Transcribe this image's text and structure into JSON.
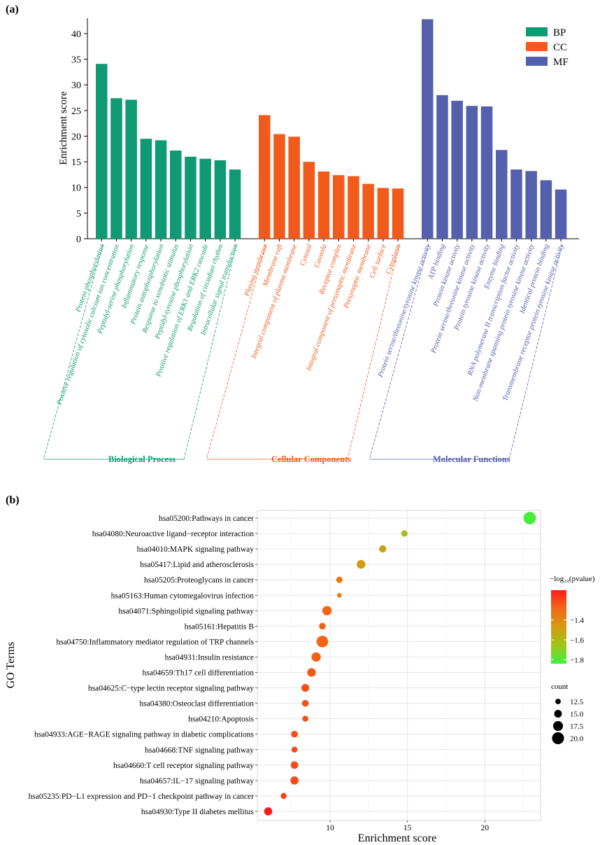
{
  "colors": {
    "bp": "#0f9a73",
    "cc": "#f05b1b",
    "mf": "#5460ac",
    "axis": "#000000",
    "grid": "#e6e6e6",
    "panel_bg": "#ffffff"
  },
  "chart_data": [
    {
      "panel_label": "(a)",
      "type": "bar",
      "ylabel": "Enrichment score",
      "ylim": [
        0,
        43
      ],
      "yticks": [
        0,
        5,
        10,
        15,
        20,
        25,
        30,
        35,
        40
      ],
      "legend": {
        "position": "top-right",
        "entries": [
          "BP",
          "CC",
          "MF"
        ]
      },
      "groups": [
        {
          "key": "BP",
          "name": "Biological Process",
          "color_key": "bp",
          "categories": [
            "Protein phosphorylation",
            "Positive regulation of cytosolic calcium ion concentration",
            "Peptidyl-serine phosphorylation",
            "Inflammatory response",
            "Protein autophosphorylation",
            "Response to xenobiotic stimulus",
            "Peptidyl-tyrosine phosphorylation",
            "Positive regulation of ERK1 and ERK2 cascade",
            "Regulation of circadian rhythm",
            "Intracellular signal transduction"
          ],
          "values": [
            34.1,
            27.4,
            27.1,
            19.5,
            19.2,
            17.2,
            16.0,
            15.6,
            15.3,
            13.5
          ]
        },
        {
          "key": "CC",
          "name": "Cellular Components",
          "color_key": "cc",
          "categories": [
            "Plasma membrane",
            "Membrane raft",
            "Integral component of plasma membrane",
            "Cytosol",
            "Caveola",
            "Receptor complex",
            "Integral component of presynaptic membrane",
            "Presynaptic membrane",
            "Cell surface",
            "Cytoplasm"
          ],
          "values": [
            24.1,
            20.4,
            19.9,
            15.0,
            13.1,
            12.4,
            12.2,
            10.7,
            9.9,
            9.8
          ]
        },
        {
          "key": "MF",
          "name": "Molecular Functions",
          "color_key": "mf",
          "categories": [
            "Protein serine/threonine/tyrosine kinase activity",
            "ATP binding",
            "Protein kinase activity",
            "Protein serine/threonine kinase activity",
            "Protein tyrosine kinase activity",
            "Enzyme binding",
            "RNA polymerase II transcription factor activity",
            "Non-membrane spanning protein tyrosine kinase activity",
            "Identical protein binding",
            "Transmembrane receptor protein tyrosine kinase activity"
          ],
          "values": [
            42.8,
            28.0,
            26.9,
            25.9,
            25.8,
            17.3,
            13.5,
            13.2,
            11.4,
            9.6
          ]
        }
      ]
    },
    {
      "panel_label": "(b)",
      "type": "scatter",
      "xlabel": "Enrichment score",
      "ylabel": "GO Terms",
      "xlim": [
        5.3,
        23.6
      ],
      "xticks": [
        10,
        15,
        20
      ],
      "terms": [
        "hsa05200:Pathways in cancer",
        "hsa04080:Neuroactive ligand−receptor interaction",
        "hsa04010:MAPK signaling pathway",
        "hsa05417:Lipid and atherosclerosis",
        "hsa05205:Proteoglycans in cancer",
        "hsa05163:Human cytomegalovirus infection",
        "hsa04071:Sphingolipid signaling pathway",
        "hsa05161:Hepatitis B",
        "hsa04750:Inflammatory mediator regulation of TRP channels",
        "hsa04931:Insulin resistance",
        "hsa04659:Th17 cell differentiation",
        "hsa04625:C−type lectin receptor signaling pathway",
        "hsa04380:Osteoclast differentiation",
        "hsa04210:Apoptosis",
        "hsa04933:AGE−RAGE signaling pathway in diabetic complications",
        "hsa04668:TNF signaling pathway",
        "hsa04660:T cell receptor signaling pathway",
        "hsa04657:IL−17 signaling pathway",
        "hsa05235:PD−L1 expression and PD−1 checkpoint pathway in cancer",
        "hsa04930:Type II diabetes mellitus"
      ],
      "enrichment": [
        22.9,
        14.8,
        13.4,
        12.0,
        10.6,
        10.6,
        9.8,
        9.5,
        9.5,
        9.1,
        8.8,
        8.4,
        8.4,
        8.4,
        7.7,
        7.7,
        7.7,
        7.7,
        7.0,
        6.0
      ],
      "neg_log10_pvalue": [
        -1.82,
        -1.62,
        -1.52,
        -1.47,
        -1.35,
        -1.33,
        -1.28,
        -1.27,
        -1.27,
        -1.26,
        -1.24,
        -1.23,
        -1.23,
        -1.22,
        -1.22,
        -1.21,
        -1.21,
        -1.21,
        -1.18,
        -1.1
      ],
      "count": [
        20.5,
        13.5,
        14.5,
        16.2,
        13.5,
        11.5,
        17.0,
        13.8,
        19.5,
        16.8,
        16.0,
        15.2,
        14.0,
        13.0,
        14.0,
        13.0,
        14.8,
        15.5,
        13.0,
        15.5
      ],
      "color_legend": {
        "title": "−log₁₀(pvalue)",
        "ticks": [
          "−1.4",
          "−1.6",
          "−1.8"
        ],
        "tick_values": [
          -1.4,
          -1.6,
          -1.8
        ],
        "range": [
          -1.84,
          -1.1
        ],
        "colors": [
          "#ff1a1a",
          "#f06a14",
          "#d69a12",
          "#9fc41c",
          "#3cf23c"
        ]
      },
      "size_legend": {
        "title": "count",
        "labels": [
          "12.5",
          "15.0",
          "17.5",
          "20.0"
        ],
        "values": [
          12.5,
          15.0,
          17.5,
          20.0
        ]
      }
    }
  ]
}
